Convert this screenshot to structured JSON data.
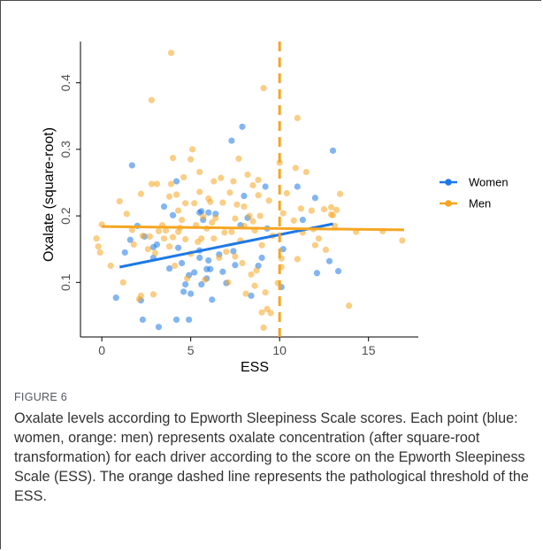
{
  "chart_data": {
    "type": "scatter",
    "xlabel": "ESS",
    "ylabel": "Oxalate (square-root)",
    "xlim": [
      -1.2,
      17.8
    ],
    "ylim": [
      0.018,
      0.462
    ],
    "x_ticks": [
      0,
      5,
      10,
      15
    ],
    "y_ticks": [
      0.1,
      0.2,
      0.3,
      0.4
    ],
    "grid": false,
    "legend_position": "right",
    "threshold": {
      "x": 10,
      "color": "#f5a623",
      "style": "dashed"
    },
    "series": [
      {
        "name": "Women",
        "color": "#1e78e6",
        "trend": {
          "x": [
            1,
            13
          ],
          "y": [
            0.123,
            0.188
          ]
        },
        "points": [
          [
            0.8,
            0.077
          ],
          [
            1.3,
            0.145
          ],
          [
            1.6,
            0.164
          ],
          [
            1.7,
            0.276
          ],
          [
            2.0,
            0.185
          ],
          [
            2.2,
            0.073
          ],
          [
            2.3,
            0.044
          ],
          [
            2.4,
            0.169
          ],
          [
            2.9,
            0.137
          ],
          [
            2.9,
            0.153
          ],
          [
            3.1,
            0.157
          ],
          [
            3.2,
            0.033
          ],
          [
            3.5,
            0.214
          ],
          [
            3.8,
            0.121
          ],
          [
            4.0,
            0.201
          ],
          [
            4.2,
            0.252
          ],
          [
            4.2,
            0.044
          ],
          [
            4.3,
            0.152
          ],
          [
            4.5,
            0.129
          ],
          [
            4.6,
            0.086
          ],
          [
            4.7,
            0.097
          ],
          [
            4.9,
            0.111
          ],
          [
            4.9,
            0.044
          ],
          [
            5.0,
            0.083
          ],
          [
            5.2,
            0.115
          ],
          [
            5.5,
            0.148
          ],
          [
            5.5,
            0.137
          ],
          [
            5.5,
            0.205
          ],
          [
            5.6,
            0.207
          ],
          [
            5.6,
            0.097
          ],
          [
            5.7,
            0.194
          ],
          [
            5.9,
            0.12
          ],
          [
            5.9,
            0.106
          ],
          [
            6.0,
            0.133
          ],
          [
            6.0,
            0.205
          ],
          [
            6.1,
            0.12
          ],
          [
            6.2,
            0.074
          ],
          [
            6.4,
            0.203
          ],
          [
            6.6,
            0.142
          ],
          [
            6.8,
            0.116
          ],
          [
            7.0,
            0.099
          ],
          [
            7.3,
            0.313
          ],
          [
            7.4,
            0.147
          ],
          [
            7.5,
            0.126
          ],
          [
            7.8,
            0.186
          ],
          [
            7.9,
            0.334
          ],
          [
            8.0,
            0.23
          ],
          [
            8.2,
            0.197
          ],
          [
            8.4,
            0.08
          ],
          [
            8.8,
            0.125
          ],
          [
            9.0,
            0.137
          ],
          [
            9.2,
            0.244
          ],
          [
            9.3,
            0.181
          ],
          [
            10.1,
            0.093
          ],
          [
            10.2,
            0.15
          ],
          [
            11.3,
            0.194
          ],
          [
            12.0,
            0.227
          ],
          [
            12.1,
            0.114
          ],
          [
            12.8,
            0.132
          ],
          [
            13.0,
            0.298
          ],
          [
            13.3,
            0.117
          ],
          [
            11.0,
            0.244
          ]
        ]
      },
      {
        "name": "Men",
        "color": "#f5a623",
        "trend": {
          "x": [
            0,
            17
          ],
          "y": [
            0.184,
            0.179
          ]
        },
        "points": [
          [
            -0.3,
            0.166
          ],
          [
            -0.2,
            0.154
          ],
          [
            -0.1,
            0.145
          ],
          [
            0.0,
            0.187
          ],
          [
            0.5,
            0.125
          ],
          [
            1.0,
            0.222
          ],
          [
            1.2,
            0.1
          ],
          [
            1.4,
            0.203
          ],
          [
            1.7,
            0.179
          ],
          [
            1.8,
            0.157
          ],
          [
            2.1,
            0.075
          ],
          [
            2.2,
            0.233
          ],
          [
            2.2,
            0.08
          ],
          [
            2.3,
            0.17
          ],
          [
            2.6,
            0.15
          ],
          [
            2.7,
            0.169
          ],
          [
            2.8,
            0.374
          ],
          [
            2.8,
            0.248
          ],
          [
            2.9,
            0.082
          ],
          [
            3.0,
            0.144
          ],
          [
            3.1,
            0.248
          ],
          [
            3.2,
            0.177
          ],
          [
            3.4,
            0.186
          ],
          [
            3.5,
            0.166
          ],
          [
            3.6,
            0.178
          ],
          [
            3.8,
            0.229
          ],
          [
            3.8,
            0.154
          ],
          [
            3.9,
            0.248
          ],
          [
            3.9,
            0.445
          ],
          [
            4.0,
            0.287
          ],
          [
            4.0,
            0.168
          ],
          [
            4.1,
            0.125
          ],
          [
            4.2,
            0.232
          ],
          [
            4.3,
            0.208
          ],
          [
            4.3,
            0.176
          ],
          [
            4.4,
            0.182
          ],
          [
            4.5,
            0.194
          ],
          [
            4.6,
            0.258
          ],
          [
            4.7,
            0.219
          ],
          [
            4.7,
            0.165
          ],
          [
            4.8,
            0.106
          ],
          [
            5.0,
            0.143
          ],
          [
            5.0,
            0.285
          ],
          [
            5.1,
            0.3
          ],
          [
            5.2,
            0.219
          ],
          [
            5.3,
            0.186
          ],
          [
            5.4,
            0.161
          ],
          [
            5.5,
            0.236
          ],
          [
            5.5,
            0.266
          ],
          [
            5.6,
            0.166
          ],
          [
            5.7,
            0.199
          ],
          [
            5.8,
            0.104
          ],
          [
            5.9,
            0.181
          ],
          [
            6.0,
            0.226
          ],
          [
            6.1,
            0.221
          ],
          [
            6.2,
            0.19
          ],
          [
            6.3,
            0.252
          ],
          [
            6.3,
            0.166
          ],
          [
            6.4,
            0.197
          ],
          [
            6.6,
            0.137
          ],
          [
            6.7,
            0.257
          ],
          [
            6.8,
            0.22
          ],
          [
            6.9,
            0.175
          ],
          [
            7.0,
            0.146
          ],
          [
            7.1,
            0.1
          ],
          [
            7.2,
            0.235
          ],
          [
            7.3,
            0.176
          ],
          [
            7.4,
            0.252
          ],
          [
            7.5,
            0.139
          ],
          [
            7.5,
            0.196
          ],
          [
            7.6,
            0.217
          ],
          [
            7.7,
            0.286
          ],
          [
            7.8,
            0.163
          ],
          [
            7.9,
            0.129
          ],
          [
            8.0,
            0.185
          ],
          [
            8.0,
            0.214
          ],
          [
            8.1,
            0.083
          ],
          [
            8.2,
            0.262
          ],
          [
            8.3,
            0.2
          ],
          [
            8.4,
            0.112
          ],
          [
            8.5,
            0.192
          ],
          [
            8.5,
            0.246
          ],
          [
            8.6,
            0.178
          ],
          [
            8.6,
            0.095
          ],
          [
            8.7,
            0.118
          ],
          [
            8.8,
            0.254
          ],
          [
            8.9,
            0.2
          ],
          [
            9.0,
            0.055
          ],
          [
            9.0,
            0.156
          ],
          [
            9.1,
            0.392
          ],
          [
            9.1,
            0.032
          ],
          [
            9.2,
            0.085
          ],
          [
            9.3,
            0.06
          ],
          [
            9.4,
            0.223
          ],
          [
            9.5,
            0.054
          ],
          [
            9.9,
            0.099
          ],
          [
            10.0,
            0.28
          ],
          [
            10.1,
            0.136
          ],
          [
            10.1,
            0.123
          ],
          [
            10.2,
            0.204
          ],
          [
            10.4,
            0.234
          ],
          [
            10.8,
            0.193
          ],
          [
            10.9,
            0.272
          ],
          [
            11.0,
            0.135
          ],
          [
            11.0,
            0.347
          ],
          [
            11.2,
            0.211
          ],
          [
            11.3,
            0.175
          ],
          [
            11.5,
            0.266
          ],
          [
            11.8,
            0.208
          ],
          [
            11.9,
            0.18
          ],
          [
            12.0,
            0.156
          ],
          [
            12.2,
            0.166
          ],
          [
            12.5,
            0.21
          ],
          [
            12.6,
            0.149
          ],
          [
            12.9,
            0.213
          ],
          [
            13.0,
            0.201
          ],
          [
            13.2,
            0.209
          ],
          [
            13.4,
            0.233
          ],
          [
            13.9,
            0.065
          ],
          [
            14.3,
            0.176
          ],
          [
            15.8,
            0.177
          ],
          [
            16.9,
            0.163
          ],
          [
            12.9,
            0.202
          ],
          [
            8.8,
            0.231
          ],
          [
            9.6,
            0.17
          ],
          [
            13.1,
            0.185
          ]
        ]
      }
    ]
  },
  "caption": {
    "label": "FIGURE 6",
    "text": "Oxalate levels according to Epworth Sleepiness Scale scores. Each point (blue: women, orange: men) represents oxalate concentration (after square-root transformation) for each driver according to the score on the Epworth Sleepiness Scale (ESS). The orange dashed line represents the pathological threshold of the ESS."
  }
}
